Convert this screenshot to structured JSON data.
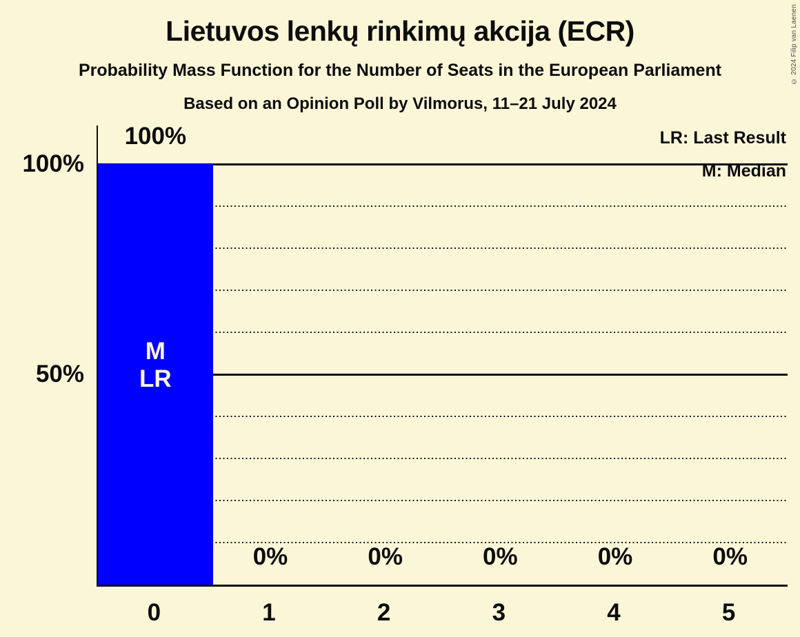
{
  "title": "Lietuvos lenkų rinkimų akcija (ECR)",
  "subtitle": "Probability Mass Function for the Number of Seats in the European Parliament",
  "poll_line": "Based on an Opinion Poll by Vilmorus, 11–21 July 2024",
  "copyright": "© 2024 Filip van Laenen",
  "legend": {
    "last_result": "LR: Last Result",
    "median": "M: Median"
  },
  "colors": {
    "background": "#FCF6D8",
    "bar": "#0000FF",
    "text": "#0D0D0D",
    "bar_label_text": "#FCF6D8"
  },
  "chart_data": {
    "type": "bar",
    "title": "Lietuvos lenkų rinkimų akcija (ECR)",
    "categories": [
      "0",
      "1",
      "2",
      "3",
      "4",
      "5"
    ],
    "values": [
      100,
      0,
      0,
      0,
      0,
      0
    ],
    "value_labels": [
      "100%",
      "0%",
      "0%",
      "0%",
      "0%",
      "0%"
    ],
    "xlabel": "",
    "ylabel": "",
    "ylim": [
      0,
      100
    ],
    "y_ticks": [
      {
        "value": 100,
        "label": "100%"
      },
      {
        "value": 50,
        "label": "50%"
      }
    ],
    "solid_gridlines": [
      100,
      50
    ],
    "dotted_gridlines": [
      90,
      80,
      70,
      60,
      40,
      30,
      20,
      10
    ],
    "grid": "horizontal",
    "legend_position": "top-right",
    "median_seats": 0,
    "last_result_seats": 0,
    "bar_annotations": [
      {
        "category_index": 0,
        "lines": [
          "M",
          "LR"
        ]
      }
    ]
  }
}
